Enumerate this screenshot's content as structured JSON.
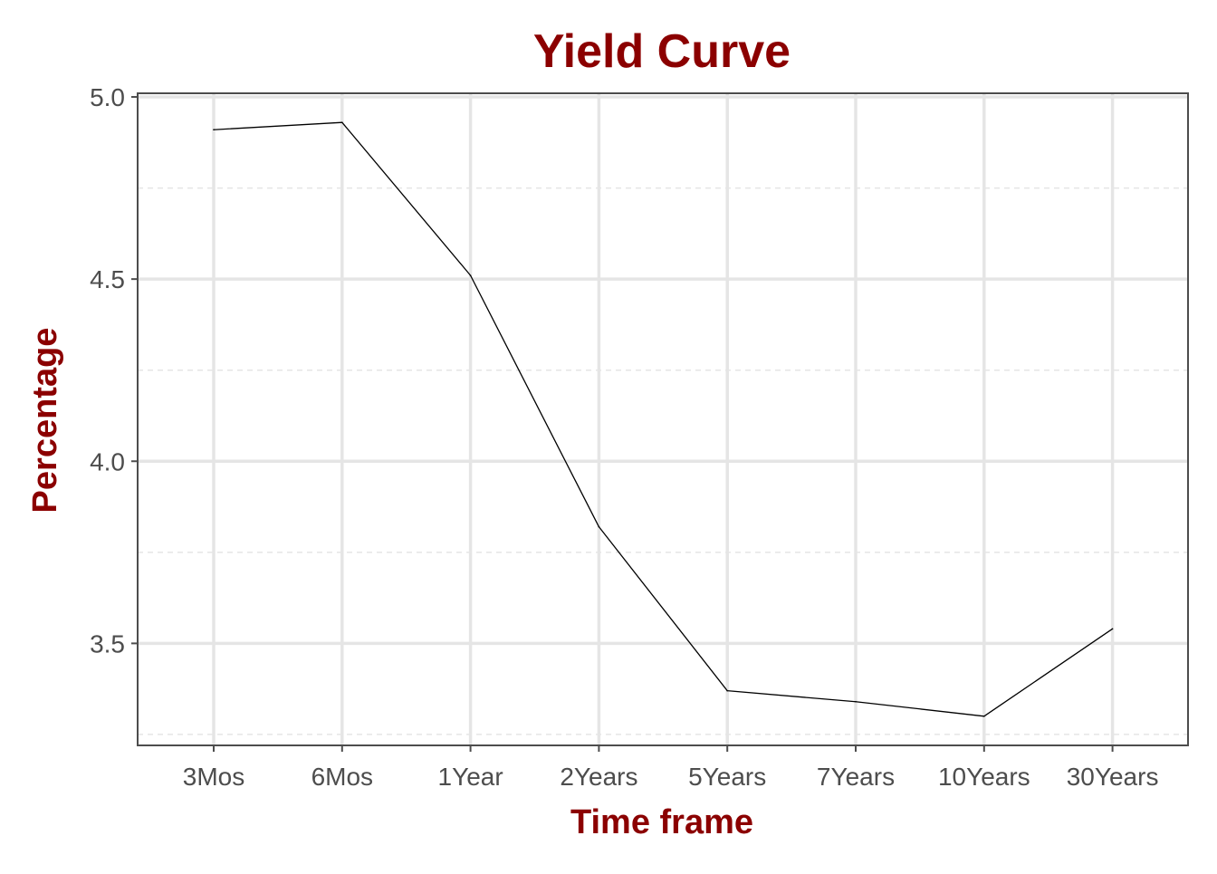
{
  "chart_data": {
    "type": "line",
    "title": "Yield Curve",
    "xlabel": "Time frame",
    "ylabel": "Percentage",
    "categories": [
      "3Mos",
      "6Mos",
      "1Year",
      "2Years",
      "5Years",
      "7Years",
      "10Years",
      "30Years"
    ],
    "series": [
      {
        "values": [
          4.91,
          4.93,
          4.51,
          3.82,
          3.37,
          3.34,
          3.3,
          3.54
        ]
      }
    ],
    "ylim": [
      3.22,
      5.01
    ],
    "yticks": [
      3.5,
      4.0,
      4.5,
      5.0
    ],
    "ytick_labels": [
      "3.5",
      "4.0",
      "4.5",
      "5.0"
    ],
    "grid": true,
    "legend": "none",
    "colors": {
      "title": "#8b0000",
      "axis_title": "#8b0000",
      "line": "#000000",
      "grid": "#e5e5e5",
      "panel_border": "#4d4d4d",
      "tick_label": "#4d4d4d"
    }
  }
}
